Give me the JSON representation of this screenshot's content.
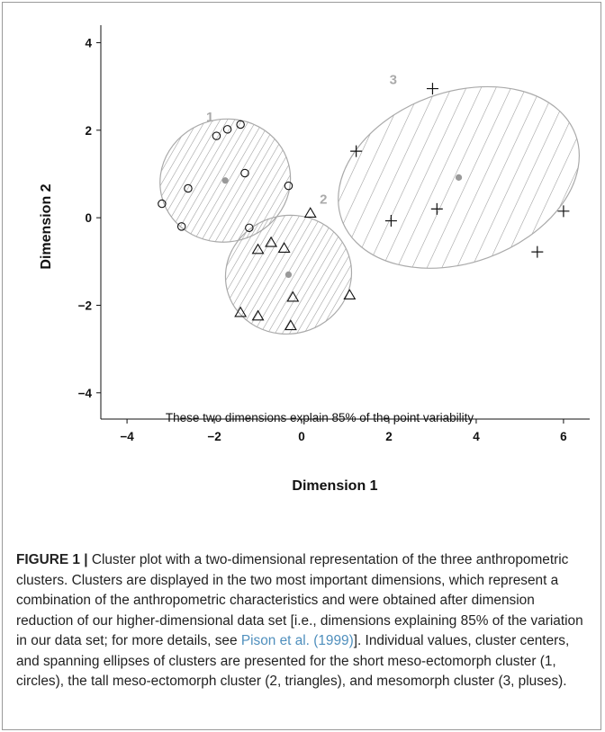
{
  "chart_data": {
    "type": "scatter",
    "xlabel": "Dimension 1",
    "ylabel": "Dimension 2",
    "xlim": [
      -4.6,
      6.6
    ],
    "ylim": [
      -4.6,
      4.4
    ],
    "xticks": [
      -4,
      -2,
      0,
      2,
      4,
      6
    ],
    "yticks": [
      -4,
      -2,
      0,
      2,
      4
    ],
    "annotation": "These two dimensions explain 85% of the point variability",
    "colors": {
      "points": "#111111",
      "ellipse": "#aaaaaa",
      "center": "#999999",
      "label": "#aaaaaa"
    },
    "clusters": [
      {
        "label": "1",
        "marker": "circle",
        "center": [
          -1.75,
          0.85
        ],
        "ellipse": {
          "rx": 1.5,
          "ry": 1.4,
          "angle_deg": -15
        },
        "label_pos": [
          -2.1,
          2.2
        ],
        "points": [
          [
            -1.95,
            1.87
          ],
          [
            -1.7,
            2.02
          ],
          [
            -1.4,
            2.13
          ],
          [
            -2.6,
            0.67
          ],
          [
            -1.3,
            1.02
          ],
          [
            -0.3,
            0.73
          ],
          [
            -3.2,
            0.32
          ],
          [
            -2.75,
            -0.2
          ],
          [
            -1.2,
            -0.23
          ]
        ]
      },
      {
        "label": "2",
        "marker": "triangle",
        "center": [
          -0.3,
          -1.3
        ],
        "ellipse": {
          "rx": 1.45,
          "ry": 1.35,
          "angle_deg": -15
        },
        "label_pos": [
          0.5,
          0.32
        ],
        "points": [
          [
            0.2,
            0.1
          ],
          [
            -0.7,
            -0.57
          ],
          [
            -0.4,
            -0.7
          ],
          [
            -1.0,
            -0.73
          ],
          [
            -0.2,
            -1.82
          ],
          [
            1.1,
            -1.77
          ],
          [
            -1.4,
            -2.17
          ],
          [
            -1.0,
            -2.25
          ],
          [
            -0.25,
            -2.47
          ]
        ]
      },
      {
        "label": "3",
        "marker": "plus",
        "center": [
          3.6,
          0.92
        ],
        "ellipse": {
          "rx": 2.85,
          "ry": 1.95,
          "angle_deg": -20
        },
        "label_pos": [
          2.1,
          3.05
        ],
        "points": [
          [
            3.0,
            2.95
          ],
          [
            1.25,
            1.52
          ],
          [
            2.05,
            -0.07
          ],
          [
            3.1,
            0.2
          ],
          [
            6.0,
            0.15
          ],
          [
            5.4,
            -0.78
          ]
        ]
      }
    ]
  },
  "caption": {
    "label": "FIGURE 1 |",
    "text_before": " Cluster plot with a two-dimensional representation of the three anthropometric clusters. Clusters are displayed in the two most important dimensions, which represent a combination of the anthropometric characteristics and were obtained after dimension reduction of our higher-dimensional data set [i.e., dimensions explaining 85% of the variation in our data set; for more details, see ",
    "ref": "Pison et al. (1999)",
    "text_after": "]. Individual values, cluster centers, and spanning ellipses of clusters are presented for the short meso-ectomorph cluster (1, circles), the tall meso-ectomorph cluster (2, triangles), and mesomorph cluster (3, pluses)."
  }
}
